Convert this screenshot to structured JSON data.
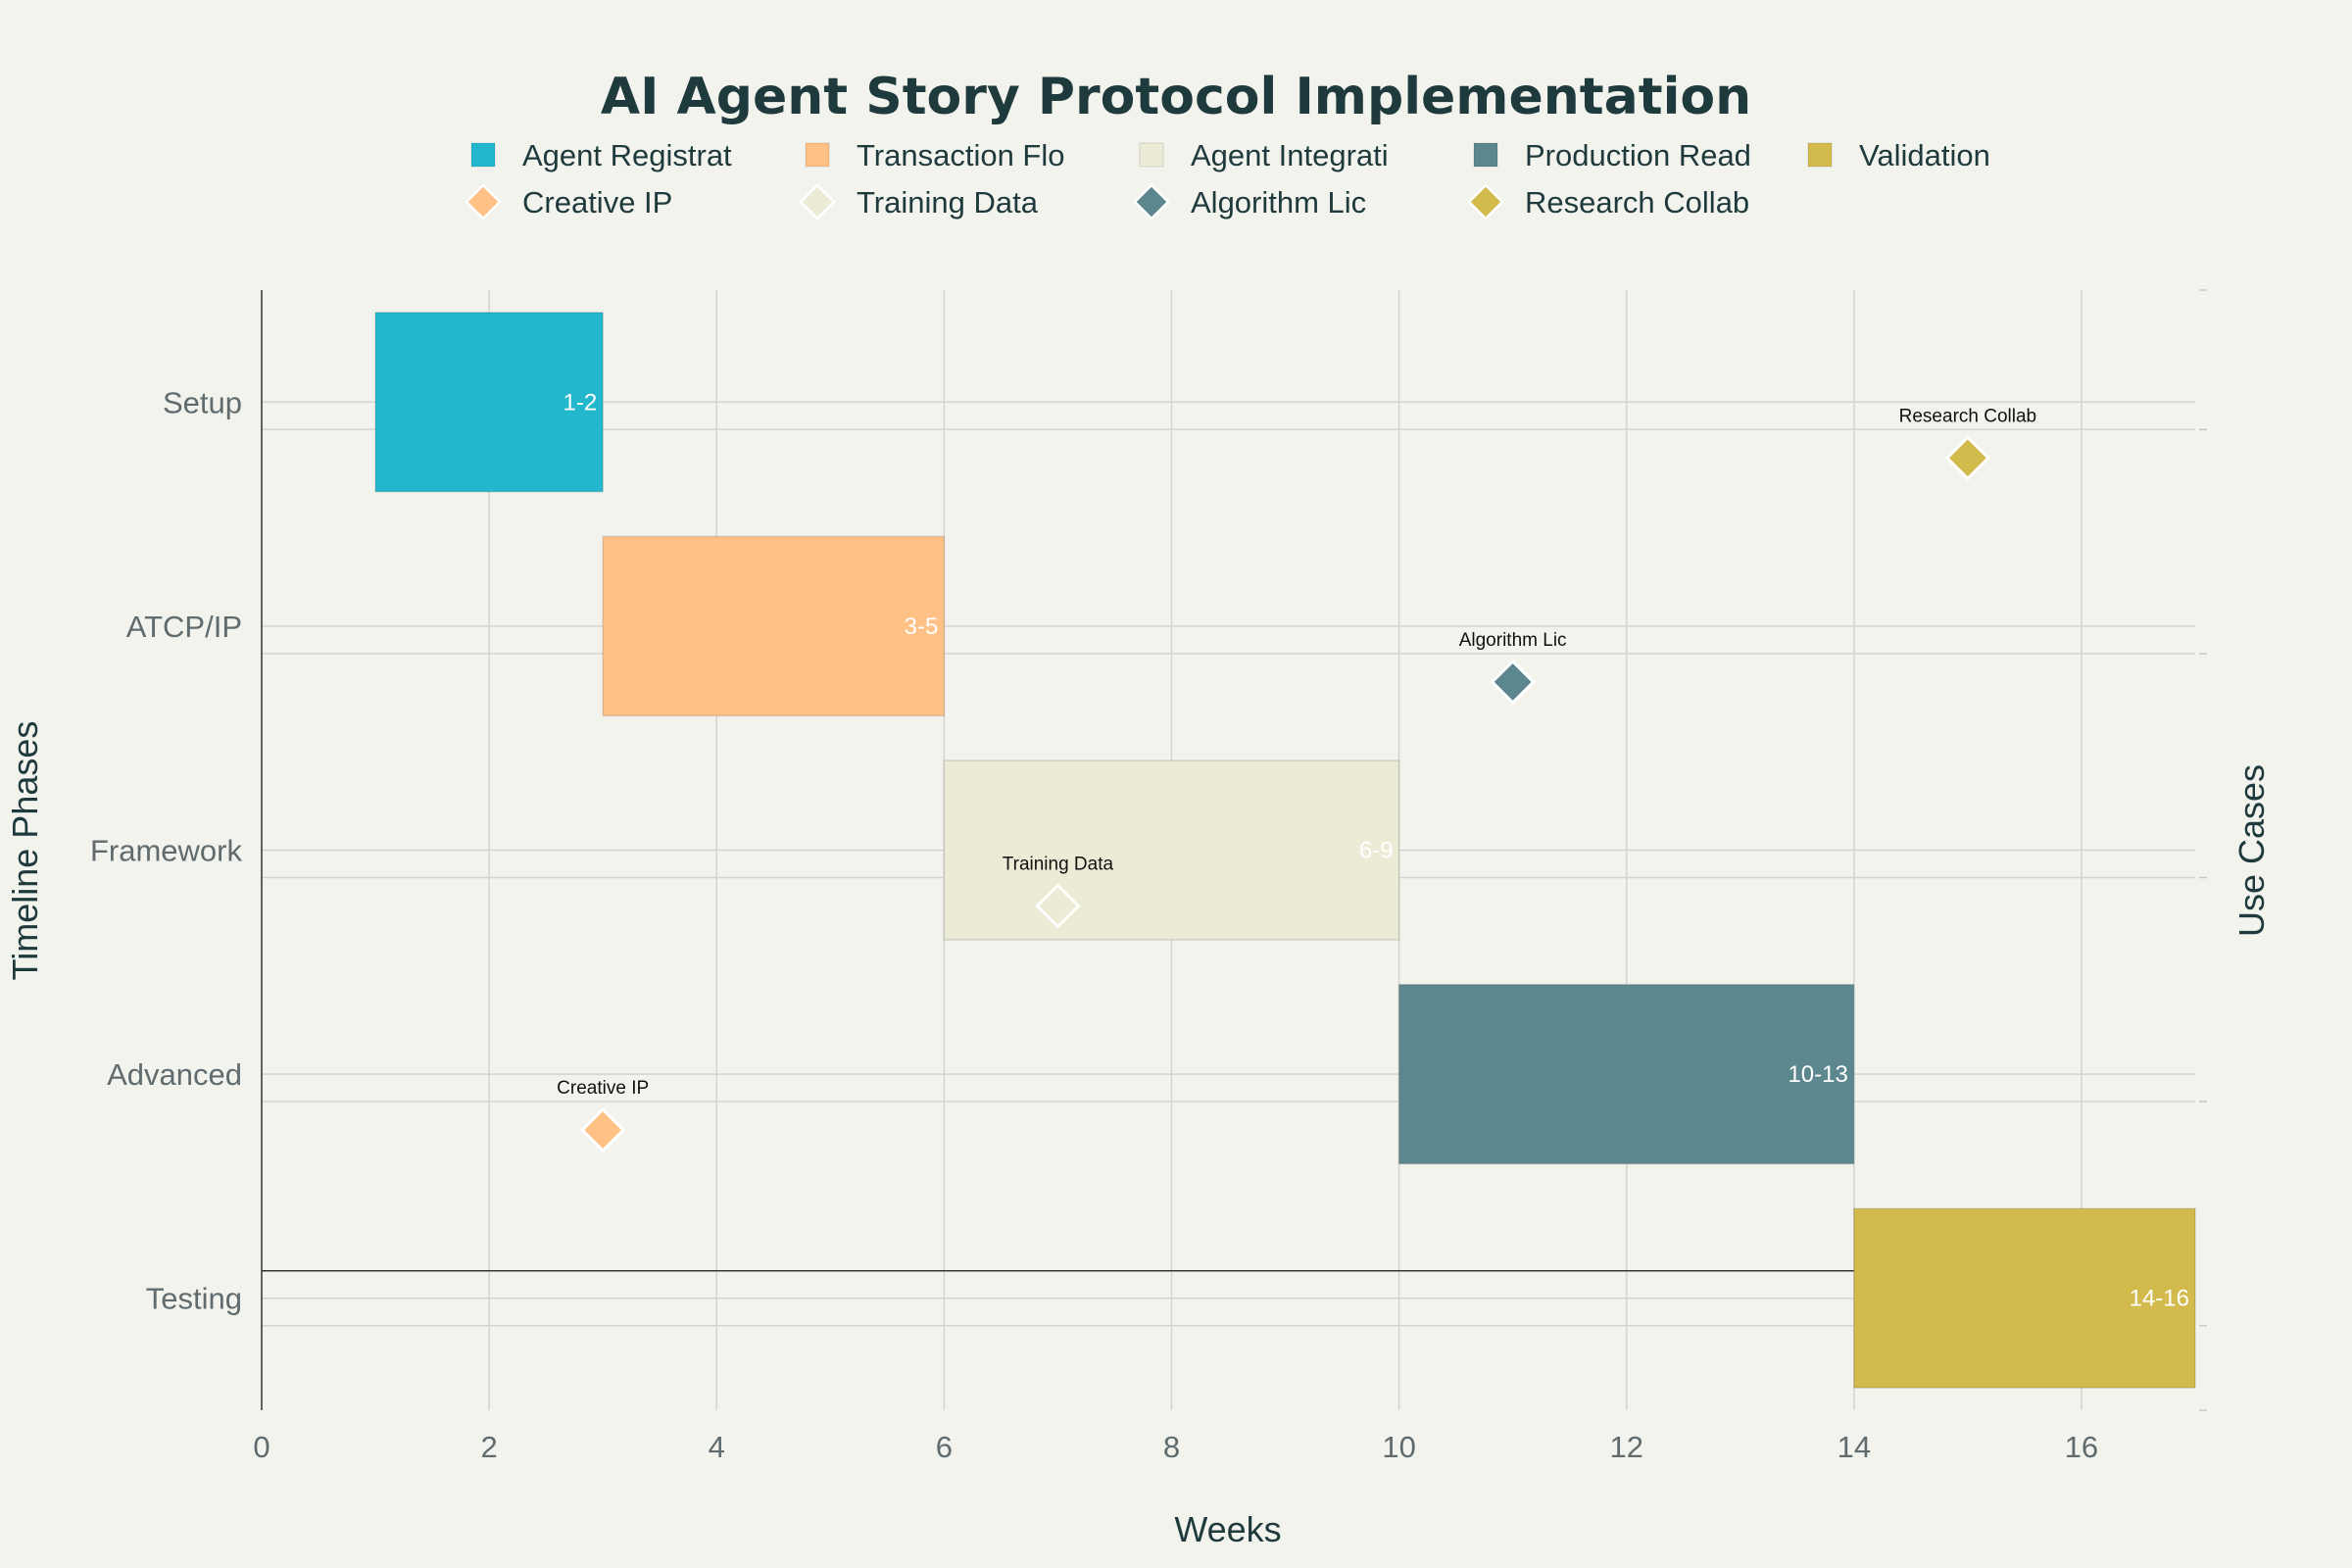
{
  "chart_data": {
    "type": "gantt",
    "title": "AI Agent Story Protocol Implementation",
    "xlabel": "Weeks",
    "ylabel": "Timeline Phases",
    "y2label": "Use Cases",
    "xlim": [
      0,
      17
    ],
    "xticks": [
      0,
      2,
      4,
      6,
      8,
      10,
      12,
      14,
      16
    ],
    "grid": true,
    "legend_position": "top",
    "phases": [
      "Setup",
      "ATCP/IP",
      "Framework",
      "Advanced",
      "Testing"
    ],
    "tasks": [
      {
        "name": "Agent Registrat",
        "phase": "Setup",
        "start": 1,
        "end": 3,
        "label": "1-2",
        "color": "#22b7cc"
      },
      {
        "name": "Transaction Flo",
        "phase": "ATCP/IP",
        "start": 3,
        "end": 6,
        "label": "3-5",
        "color": "#ffc185"
      },
      {
        "name": "Agent Integrati",
        "phase": "Framework",
        "start": 6,
        "end": 10,
        "label": "6-9",
        "color": "#ecebd5"
      },
      {
        "name": "Production Read",
        "phase": "Advanced",
        "start": 10,
        "end": 14,
        "label": "10-13",
        "color": "#5d878f"
      },
      {
        "name": "Validation",
        "phase": "Testing",
        "start": 14,
        "end": 17,
        "label": "14-16",
        "color": "#d2ba4c"
      }
    ],
    "milestones": [
      {
        "name": "Creative IP",
        "week": 3,
        "phase": "Advanced",
        "color": "#ffc185"
      },
      {
        "name": "Training Data",
        "week": 7,
        "phase": "Framework",
        "color": "#ecebd5"
      },
      {
        "name": "Algorithm Lic",
        "week": 11,
        "phase": "ATCP/IP",
        "color": "#5d878f"
      },
      {
        "name": "Research Collab",
        "week": 15,
        "phase": "Setup",
        "color": "#d2ba4c"
      }
    ]
  }
}
